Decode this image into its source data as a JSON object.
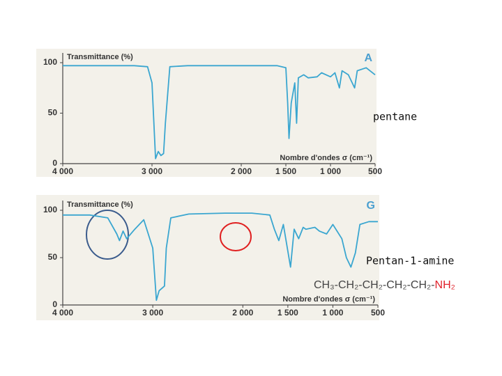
{
  "chart_data": [
    {
      "type": "line",
      "title": "A",
      "y_label": "Transmittance (%)",
      "x_label": "Nombre d'ondes σ (cm⁻¹)",
      "compound": "pentane",
      "x": [
        4000,
        3600,
        3200,
        3050,
        3000,
        2960,
        2930,
        2900,
        2870,
        2850,
        2800,
        2600,
        2200,
        1900,
        1600,
        1500,
        1480,
        1465,
        1440,
        1400,
        1380,
        1360,
        1300,
        1250,
        1150,
        1100,
        1000,
        950,
        900,
        870,
        800,
        730,
        700,
        600,
        500
      ],
      "values": [
        97,
        97,
        97,
        96,
        80,
        5,
        12,
        8,
        10,
        40,
        96,
        97,
        97,
        97,
        97,
        95,
        60,
        25,
        60,
        80,
        40,
        85,
        88,
        85,
        86,
        90,
        86,
        90,
        75,
        92,
        88,
        75,
        92,
        95,
        88
      ],
      "color": "#3aa6d0",
      "xlim": [
        4000,
        500
      ],
      "ylim": [
        0,
        100
      ],
      "xticks": [
        {
          "value": 4000,
          "label": "4 000"
        },
        {
          "value": 3000,
          "label": "3 000"
        },
        {
          "value": 2000,
          "label": "2 000"
        },
        {
          "value": 1500,
          "label": "1 500"
        },
        {
          "value": 1000,
          "label": "1 000"
        },
        500
      ],
      "yticks": [
        0,
        50,
        100
      ]
    },
    {
      "type": "line",
      "title": "G",
      "y_label": "Transmittance (%)",
      "x_label": "Nombre d'ondes σ (cm⁻¹)",
      "compound": "Pentan-1-amine",
      "formula": [
        "CH₃-CH₂-CH₂-CH₂-CH₂-",
        "NH₂"
      ],
      "formula_colors": [
        "#444444",
        "#e0202a"
      ],
      "x": [
        4000,
        3700,
        3500,
        3400,
        3370,
        3330,
        3290,
        3200,
        3100,
        3000,
        2960,
        2930,
        2870,
        2850,
        2800,
        2600,
        2200,
        1900,
        1700,
        1650,
        1600,
        1550,
        1470,
        1430,
        1380,
        1330,
        1300,
        1200,
        1150,
        1070,
        1000,
        900,
        850,
        800,
        750,
        700,
        600,
        500
      ],
      "values": [
        95,
        95,
        92,
        75,
        68,
        78,
        70,
        80,
        90,
        60,
        5,
        15,
        20,
        60,
        92,
        96,
        97,
        97,
        95,
        80,
        68,
        85,
        40,
        80,
        70,
        82,
        80,
        82,
        78,
        75,
        85,
        70,
        50,
        40,
        55,
        85,
        88,
        88
      ],
      "color": "#3aa6d0",
      "xlim": [
        4000,
        500
      ],
      "ylim": [
        0,
        100
      ],
      "xticks": [
        {
          "value": 4000,
          "label": "4 000"
        },
        {
          "value": 3000,
          "label": "3 000"
        },
        {
          "value": 2000,
          "label": "2 000"
        },
        {
          "value": 1500,
          "label": "1 500"
        },
        {
          "value": 1000,
          "label": "1 000"
        },
        500
      ],
      "yticks": [
        0,
        50,
        100
      ]
    }
  ]
}
